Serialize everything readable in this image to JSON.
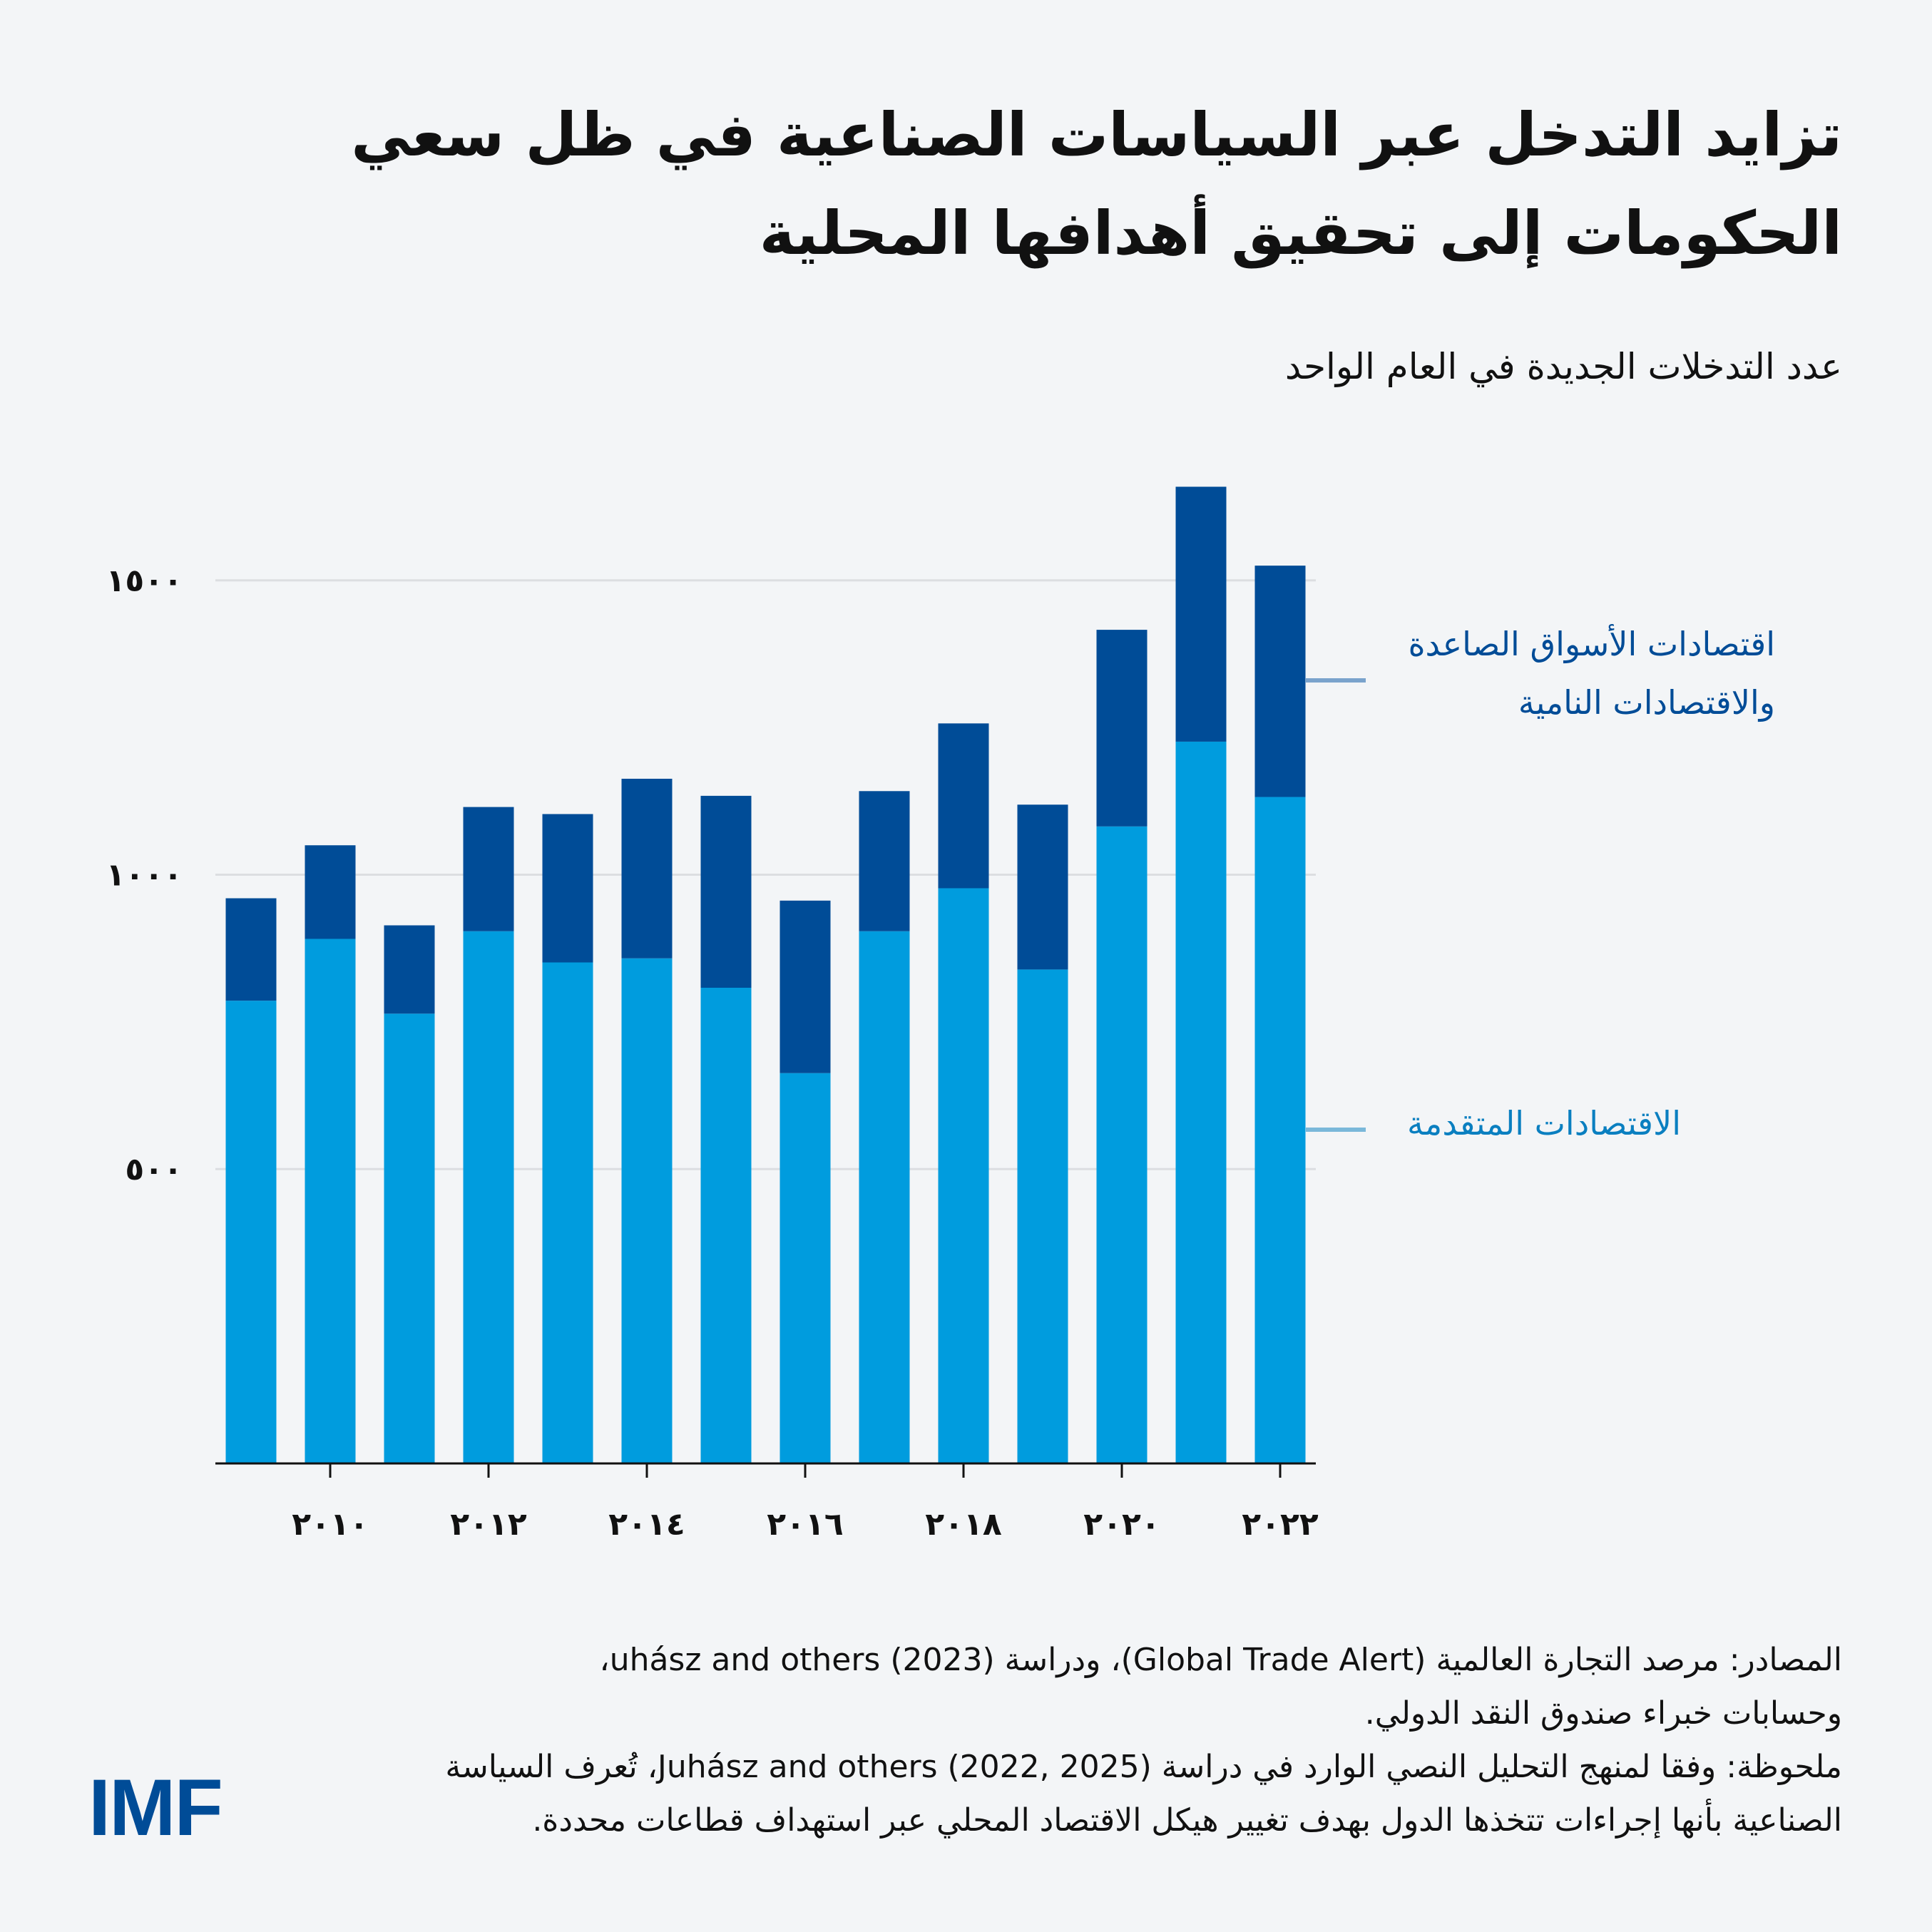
{
  "title": "تزايد التدخل عبر السياسات الصناعية في ظل سعي الحكومات إلى تحقيق أهدافها المحلية",
  "colors": {
    "background": "#f3f5f7",
    "emerging": "#004c97",
    "advanced": "#009cde",
    "grid": "#dcdee1",
    "axis": "#111111"
  },
  "chart_data": {
    "type": "bar",
    "stacked": true,
    "subtitle": "عدد التدخلات الجديدة في العام الواحد",
    "x": [
      2009,
      2010,
      2011,
      2012,
      2013,
      2014,
      2015,
      2016,
      2017,
      2018,
      2019,
      2020,
      2021,
      2022
    ],
    "x_tick_labels": [
      "٢٠١٠",
      "٢٠١٢",
      "٢٠١٤",
      "٢٠١٦",
      "٢٠١٨",
      "٢٠٢٠",
      "٢٠٢٢"
    ],
    "x_tick_values": [
      2010,
      2012,
      2014,
      2016,
      2018,
      2020,
      2022
    ],
    "y_tick_labels": [
      "٥٠٠",
      "١٠٠٠",
      "١٥٠٠"
    ],
    "y_tick_values": [
      500,
      1000,
      1500
    ],
    "ylim": [
      0,
      1700
    ],
    "grid": true,
    "legend_placement": "right, direct labels",
    "series": [
      {
        "name": "الاقتصادات المتقدمة",
        "color": "#009cde",
        "values": [
          786,
          891,
          764,
          904,
          851,
          858,
          808,
          663,
          904,
          977,
          839,
          1082,
          1226,
          1132
        ]
      },
      {
        "name": "اقتصادات الأسواق الصاعدة والاقتصادات النامية",
        "name_lines": [
          "اقتصادات الأسواق الصاعدة",
          "والاقتصادات النامية"
        ],
        "color": "#004c97",
        "values": [
          174,
          159,
          150,
          211,
          252,
          305,
          326,
          293,
          238,
          280,
          280,
          334,
          433,
          393
        ]
      }
    ]
  },
  "footer": {
    "lines": [
      "المصادر: مرصد التجارة العالمية (Global Trade Alert)، ودراسة uhász and others (2023)،",
      "وحسابات خبراء صندوق النقد الدولي.",
      "ملحوظة: وفقا لمنهج التحليل النصي الوارد في دراسة Juhász and others (2022, 2025)، تُعرف السياسة",
      "الصناعية بأنها إجراءات تتخذها الدول بهدف تغيير هيكل الاقتصاد المحلي عبر استهداف قطاعات محددة."
    ]
  },
  "logo": "IMF"
}
